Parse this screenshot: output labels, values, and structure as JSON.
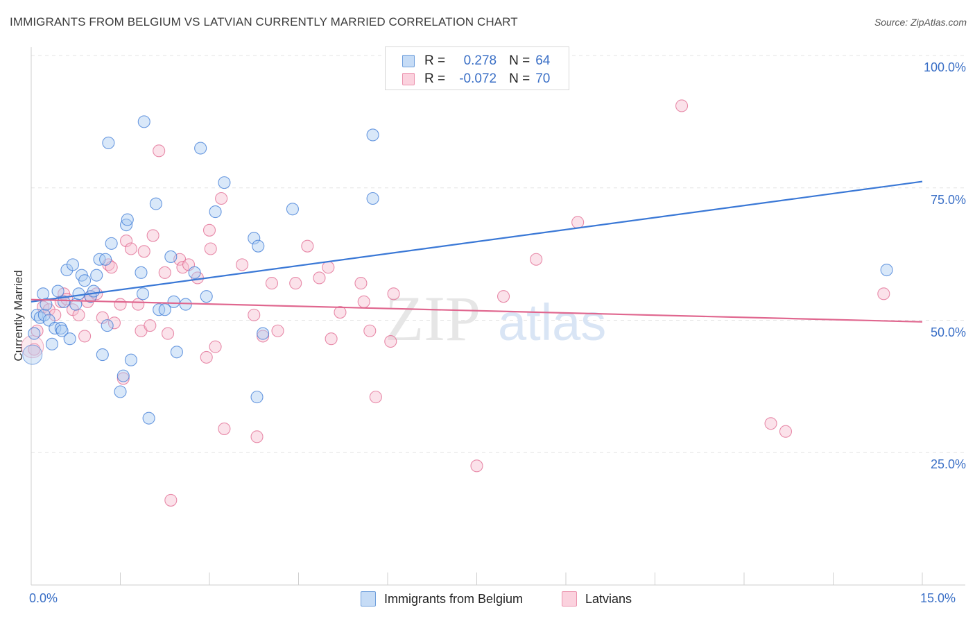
{
  "title": "IMMIGRANTS FROM BELGIUM VS LATVIAN CURRENTLY MARRIED CORRELATION CHART",
  "source": "Source: ZipAtlas.com",
  "watermark": {
    "zip": "ZIP",
    "atlas": "atlas"
  },
  "legend": {
    "rows": [
      {
        "r_label": "R =",
        "r_value": "0.278",
        "n_label": "N =",
        "n_value": "64",
        "color": "#9ec3ec"
      },
      {
        "r_label": "R =",
        "r_value": "-0.072",
        "n_label": "N =",
        "n_value": "70",
        "color": "#f4b6c8"
      }
    ]
  },
  "chart_data": {
    "type": "scatter",
    "title": "IMMIGRANTS FROM BELGIUM VS LATVIAN CURRENTLY MARRIED CORRELATION CHART",
    "xlabel": "",
    "ylabel": "Currently Married",
    "xlim": [
      0,
      15
    ],
    "ylim": [
      0,
      100
    ],
    "x_tick_labels": [
      "0.0%",
      "15.0%"
    ],
    "y_ticks": [
      25,
      50,
      75,
      100
    ],
    "y_tick_labels": [
      "25.0%",
      "50.0%",
      "75.0%",
      "100.0%"
    ],
    "grid": true,
    "legend_position": "top-center",
    "series": [
      {
        "name": "Immigrants from Belgium",
        "color": "#3a78d6",
        "fill": "#aacbf1",
        "trend": {
          "x": [
            0,
            15
          ],
          "y": [
            53.5,
            76.2
          ]
        },
        "points": [
          [
            0.05,
            47.5
          ],
          [
            0.1,
            51.0
          ],
          [
            0.15,
            50.5
          ],
          [
            0.2,
            55.0
          ],
          [
            0.22,
            51.0
          ],
          [
            0.25,
            53.0
          ],
          [
            0.3,
            50.0
          ],
          [
            0.35,
            45.5
          ],
          [
            0.4,
            48.5
          ],
          [
            0.45,
            55.5
          ],
          [
            0.5,
            48.5
          ],
          [
            0.52,
            48.0
          ],
          [
            0.55,
            53.5
          ],
          [
            0.6,
            59.5
          ],
          [
            0.65,
            46.5
          ],
          [
            0.7,
            60.5
          ],
          [
            0.75,
            53.0
          ],
          [
            0.8,
            55.0
          ],
          [
            0.85,
            58.5
          ],
          [
            0.9,
            57.5
          ],
          [
            1.0,
            54.5
          ],
          [
            1.05,
            55.5
          ],
          [
            1.1,
            58.5
          ],
          [
            1.15,
            61.5
          ],
          [
            1.2,
            43.5
          ],
          [
            1.25,
            61.5
          ],
          [
            1.28,
            49.0
          ],
          [
            1.3,
            83.5
          ],
          [
            1.35,
            64.5
          ],
          [
            1.5,
            36.5
          ],
          [
            1.55,
            39.5
          ],
          [
            1.6,
            68.0
          ],
          [
            1.62,
            69.0
          ],
          [
            1.68,
            42.5
          ],
          [
            1.85,
            59.0
          ],
          [
            1.88,
            55.0
          ],
          [
            1.9,
            87.5
          ],
          [
            1.98,
            31.5
          ],
          [
            2.1,
            72.0
          ],
          [
            2.15,
            52.0
          ],
          [
            2.25,
            52.0
          ],
          [
            2.35,
            62.0
          ],
          [
            2.4,
            53.5
          ],
          [
            2.45,
            44.0
          ],
          [
            2.6,
            53.0
          ],
          [
            2.75,
            59.0
          ],
          [
            2.85,
            82.5
          ],
          [
            2.95,
            54.5
          ],
          [
            3.1,
            70.5
          ],
          [
            3.25,
            76.0
          ],
          [
            3.75,
            65.5
          ],
          [
            3.8,
            35.5
          ],
          [
            3.82,
            64.0
          ],
          [
            3.9,
            47.5
          ],
          [
            4.4,
            71.0
          ],
          [
            5.75,
            73.0
          ],
          [
            5.75,
            85.0
          ],
          [
            14.4,
            59.5
          ]
        ]
      },
      {
        "name": "Latvians",
        "color": "#e0678f",
        "fill": "#f6bfd0",
        "trend": {
          "x": [
            0,
            15
          ],
          "y": [
            53.9,
            49.7
          ]
        },
        "points": [
          [
            0.05,
            44.5
          ],
          [
            0.1,
            48.0
          ],
          [
            0.2,
            52.5
          ],
          [
            0.3,
            52.0
          ],
          [
            0.4,
            51.0
          ],
          [
            0.5,
            53.5
          ],
          [
            0.55,
            55.0
          ],
          [
            0.6,
            54.0
          ],
          [
            0.7,
            52.0
          ],
          [
            0.8,
            51.0
          ],
          [
            0.9,
            47.0
          ],
          [
            0.95,
            53.5
          ],
          [
            1.0,
            54.5
          ],
          [
            1.1,
            55.0
          ],
          [
            1.2,
            50.5
          ],
          [
            1.3,
            60.5
          ],
          [
            1.35,
            60.0
          ],
          [
            1.4,
            49.5
          ],
          [
            1.5,
            53.0
          ],
          [
            1.55,
            39.0
          ],
          [
            1.6,
            65.0
          ],
          [
            1.68,
            63.5
          ],
          [
            1.8,
            53.0
          ],
          [
            1.85,
            48.0
          ],
          [
            1.9,
            63.0
          ],
          [
            2.0,
            49.0
          ],
          [
            2.05,
            66.0
          ],
          [
            2.15,
            82.0
          ],
          [
            2.25,
            59.0
          ],
          [
            2.3,
            47.5
          ],
          [
            2.35,
            16.0
          ],
          [
            2.5,
            61.5
          ],
          [
            2.55,
            60.0
          ],
          [
            2.65,
            60.5
          ],
          [
            2.8,
            58.0
          ],
          [
            2.95,
            43.0
          ],
          [
            3.0,
            67.0
          ],
          [
            3.02,
            63.5
          ],
          [
            3.1,
            45.0
          ],
          [
            3.2,
            73.0
          ],
          [
            3.25,
            29.5
          ],
          [
            3.55,
            60.5
          ],
          [
            3.75,
            51.0
          ],
          [
            3.8,
            28.0
          ],
          [
            3.9,
            47.0
          ],
          [
            4.05,
            57.0
          ],
          [
            4.15,
            48.0
          ],
          [
            4.45,
            57.0
          ],
          [
            4.65,
            64.0
          ],
          [
            4.85,
            58.0
          ],
          [
            5.0,
            60.0
          ],
          [
            5.05,
            46.5
          ],
          [
            5.2,
            51.5
          ],
          [
            5.55,
            57.0
          ],
          [
            5.6,
            53.5
          ],
          [
            5.7,
            48.0
          ],
          [
            5.8,
            35.5
          ],
          [
            6.05,
            46.0
          ],
          [
            6.1,
            55.0
          ],
          [
            7.5,
            22.5
          ],
          [
            7.95,
            54.5
          ],
          [
            8.5,
            61.5
          ],
          [
            9.2,
            68.5
          ],
          [
            10.95,
            90.5
          ],
          [
            12.45,
            30.5
          ],
          [
            12.7,
            29.0
          ],
          [
            14.35,
            55.0
          ]
        ]
      }
    ]
  }
}
